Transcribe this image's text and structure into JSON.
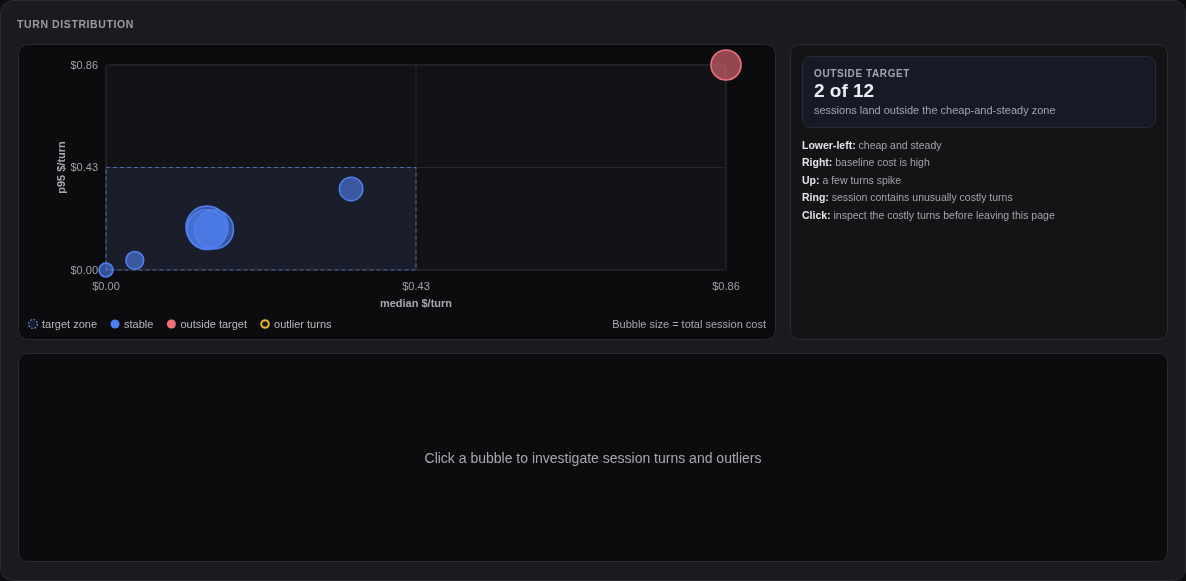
{
  "chart_data": {
    "type": "bubble",
    "title": "TURN DISTRIBUTION",
    "xlabel": "median $/turn",
    "ylabel": "p95 $/turn",
    "xlim": [
      0,
      0.86
    ],
    "ylim": [
      0,
      0.86
    ],
    "xticks": [
      {
        "value": 0,
        "label": "$0.00"
      },
      {
        "value": 0.43,
        "label": "$0.43"
      },
      {
        "value": 0.86,
        "label": "$0.86"
      }
    ],
    "yticks": [
      {
        "value": 0,
        "label": "$0.00"
      },
      {
        "value": 0.43,
        "label": "$0.43"
      },
      {
        "value": 0.86,
        "label": "$0.86"
      }
    ],
    "grid": true,
    "legend": "bottom",
    "series": [
      {
        "name": "target zone",
        "type": "area",
        "color": "#5b7fd6",
        "line_style": "dashed",
        "x": [
          0,
          0.43
        ],
        "values": [
          0.43,
          0.43
        ]
      },
      {
        "name": "stable",
        "color": "#4f7ff0",
        "x": [
          0.0,
          0.04,
          0.14,
          0.14,
          0.15,
          0.34
        ],
        "values": [
          0.0,
          0.04,
          0.18,
          0.17,
          0.17,
          0.34
        ],
        "sizes": [
          0.11,
          0.18,
          1,
          0.91,
          0.85,
          0.31
        ]
      },
      {
        "name": "outside target",
        "color": "#f0707c",
        "x": [
          0.86
        ],
        "values": [
          0.86
        ],
        "sizes": [
          0.51
        ]
      },
      {
        "name": "outlier turns",
        "color": "#e8b13a"
      }
    ],
    "annotations": [
      "Bubble size = total session cost",
      "OUTSIDE TARGET",
      "2 of 12",
      "sessions land outside the cheap-and-steady zone",
      "Lower-left: cheap and steady",
      "Right: baseline cost is high",
      "Up: a few turns spike",
      "Ring: session contains unusually costly turns",
      "Click: inspect the costly turns before leaving this page",
      "Click a bubble to investigate session turns and outliers"
    ]
  }
}
